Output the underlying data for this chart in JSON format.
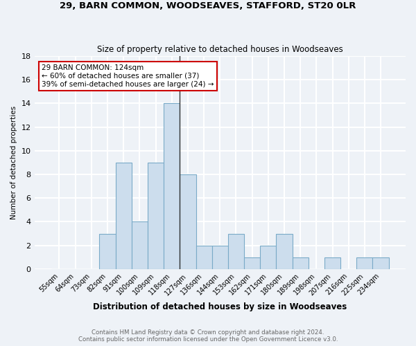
{
  "title1": "29, BARN COMMON, WOODSEAVES, STAFFORD, ST20 0LR",
  "title2": "Size of property relative to detached houses in Woodseaves",
  "xlabel": "Distribution of detached houses by size in Woodseaves",
  "ylabel": "Number of detached properties",
  "footer1": "Contains HM Land Registry data © Crown copyright and database right 2024.",
  "footer2": "Contains public sector information licensed under the Open Government Licence v3.0.",
  "annotation_line1": "29 BARN COMMON: 124sqm",
  "annotation_line2": "← 60% of detached houses are smaller (37)",
  "annotation_line3": "39% of semi-detached houses are larger (24) →",
  "bar_color": "#ccdded",
  "bar_edge_color": "#7aaac8",
  "vline_color": "#333333",
  "annotation_box_edge_color": "#cc0000",
  "categories": [
    "55sqm",
    "64sqm",
    "73sqm",
    "82sqm",
    "91sqm",
    "100sqm",
    "109sqm",
    "118sqm",
    "127sqm",
    "136sqm",
    "144sqm",
    "153sqm",
    "162sqm",
    "171sqm",
    "180sqm",
    "189sqm",
    "198sqm",
    "207sqm",
    "216sqm",
    "225sqm",
    "234sqm"
  ],
  "values": [
    0,
    0,
    0,
    3,
    9,
    4,
    9,
    14,
    8,
    2,
    2,
    3,
    1,
    2,
    3,
    1,
    0,
    1,
    0,
    1,
    1
  ],
  "vline_index": 7.5,
  "ylim": [
    0,
    18
  ],
  "yticks": [
    0,
    2,
    4,
    6,
    8,
    10,
    12,
    14,
    16,
    18
  ],
  "background_color": "#eef2f7",
  "grid_color": "#ffffff",
  "footer_color": "#666666"
}
